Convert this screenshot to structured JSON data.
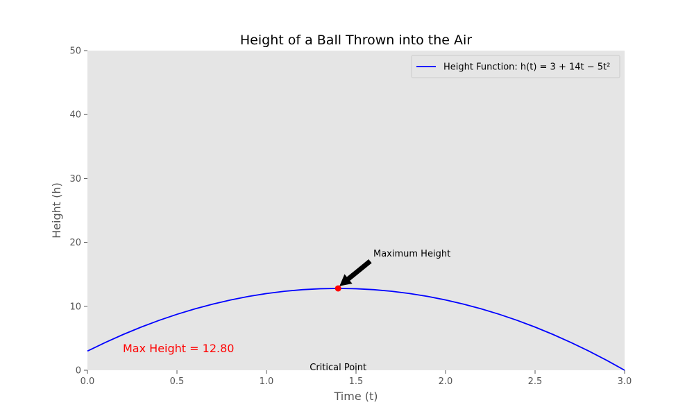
{
  "chart_data": {
    "type": "line",
    "title": "Height of a Ball Thrown into the Air",
    "xlabel": "Time (t)",
    "ylabel": "Height (h)",
    "xlim": [
      0,
      3
    ],
    "ylim": [
      0,
      50
    ],
    "xticks": [
      "0.0",
      "0.5",
      "1.0",
      "1.5",
      "2.0",
      "2.5",
      "3.0"
    ],
    "yticks": [
      "0",
      "10",
      "20",
      "30",
      "40",
      "50"
    ],
    "grid": false,
    "legend_position": "top-right",
    "series": [
      {
        "name": "Height Function: h(t) = 3 + 14t − 5t²",
        "color": "#0000ff",
        "x": [
          0.0,
          0.1,
          0.2,
          0.3,
          0.4,
          0.5,
          0.6,
          0.7,
          0.8,
          0.9,
          1.0,
          1.1,
          1.2,
          1.3,
          1.4,
          1.5,
          1.6,
          1.7,
          1.8,
          1.9,
          2.0,
          2.1,
          2.2,
          2.3,
          2.4,
          2.5,
          2.6,
          2.7,
          2.8,
          2.9,
          3.0
        ],
        "y": [
          3.0,
          4.35,
          5.6,
          6.75,
          7.8,
          8.75,
          9.6,
          10.35,
          11.0,
          11.55,
          12.0,
          12.35,
          12.6,
          12.75,
          12.8,
          12.75,
          12.6,
          12.35,
          12.0,
          11.55,
          11.0,
          10.35,
          9.6,
          8.75,
          7.8,
          6.75,
          5.6,
          4.35,
          3.0,
          1.55,
          0.0
        ]
      }
    ],
    "max_point": {
      "x": 1.4,
      "y": 12.8,
      "color": "#ff0000"
    },
    "annotations": {
      "max_label": "Maximum Height",
      "max_height_text": "Max Height = 12.80",
      "max_height_color": "#ff0000",
      "critical_label": "Critical Point"
    },
    "plot_background": "#e5e5e5"
  }
}
